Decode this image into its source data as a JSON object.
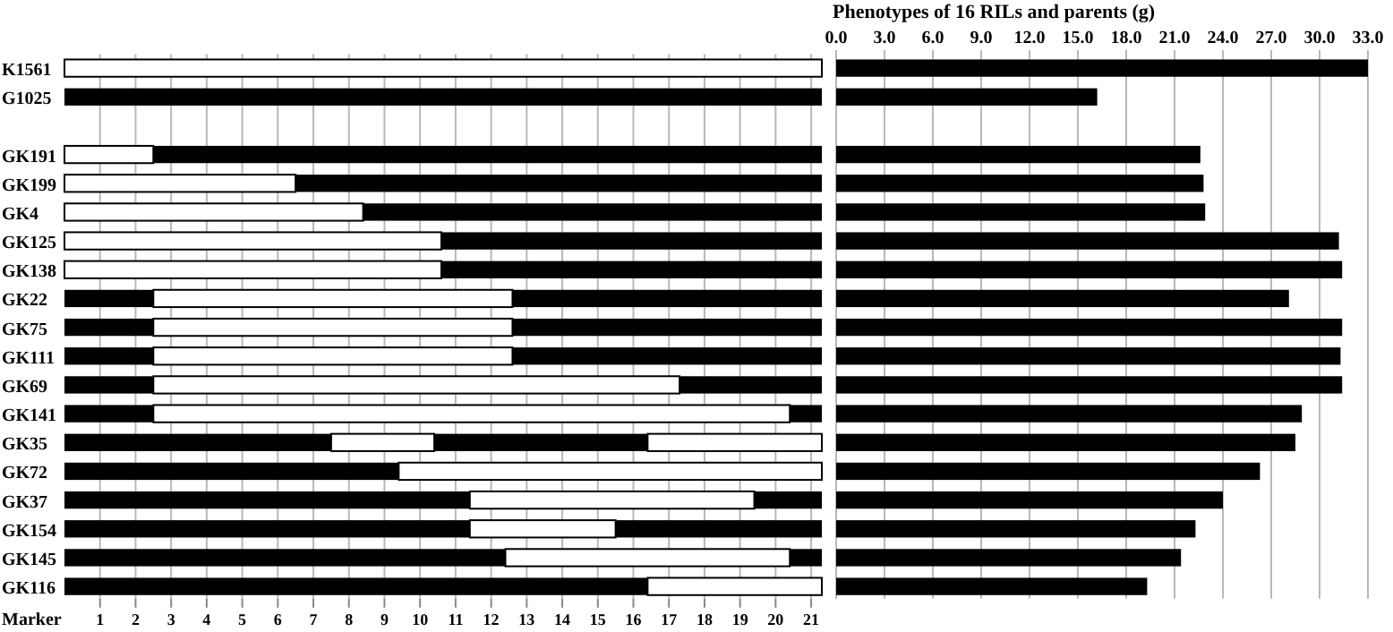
{
  "chart_data": [
    {
      "type": "bar",
      "orientation": "horizontal",
      "stacked": true,
      "xlabel": "Marker",
      "categories": [
        "K1561",
        "G1025",
        null,
        "GK191",
        "GK199",
        "GK4",
        "GK125",
        "GK138",
        "GK22",
        "GK75",
        "GK111",
        "GK69",
        "GK141",
        "GK35",
        "GK72",
        "GK37",
        "GK154",
        "GK145",
        "GK116"
      ],
      "series": [
        {
          "color": "#ffffff",
          "values": [
            21.3,
            null,
            null,
            2.5,
            6.5,
            8.4,
            10.6,
            10.6,
            null,
            null,
            null,
            null,
            null,
            null,
            null,
            null,
            null,
            null,
            null
          ]
        },
        {
          "color": "#000000",
          "values": [
            null,
            21.3,
            null,
            18.8,
            14.8,
            12.9,
            10.7,
            10.7,
            2.5,
            2.5,
            2.5,
            2.5,
            2.5,
            7.5,
            9.4,
            11.4,
            11.4,
            12.4,
            16.4
          ]
        },
        {
          "color": "#ffffff",
          "values": [
            null,
            null,
            null,
            null,
            null,
            null,
            null,
            null,
            10.1,
            10.1,
            10.1,
            14.8,
            17.9,
            2.9,
            11.9,
            8.0,
            4.1,
            8.0,
            4.9
          ]
        },
        {
          "color": "#000000",
          "values": [
            null,
            null,
            null,
            null,
            null,
            null,
            null,
            null,
            8.7,
            8.7,
            8.7,
            4.0,
            0.9,
            6.0,
            null,
            1.9,
            5.8,
            0.9,
            null
          ]
        },
        {
          "color": "#ffffff",
          "values": [
            null,
            null,
            null,
            null,
            null,
            null,
            null,
            null,
            null,
            null,
            null,
            null,
            null,
            4.9,
            null,
            null,
            null,
            null,
            null
          ]
        }
      ],
      "xlim": [
        0,
        21.3
      ],
      "xticks": [
        1,
        2,
        3,
        4,
        5,
        6,
        7,
        8,
        9,
        10,
        11,
        12,
        13,
        14,
        15,
        16,
        17,
        18,
        19,
        20,
        21
      ],
      "grid": "x"
    },
    {
      "type": "bar",
      "orientation": "horizontal",
      "title": "Phenotypes of 16 RILs and parents (g)",
      "categories": [
        null,
        null,
        null,
        null,
        null,
        null,
        null,
        null,
        null,
        null,
        null,
        null,
        null,
        null,
        null,
        null,
        null,
        null,
        null
      ],
      "series": [
        {
          "color": "#000000",
          "values": [
            33.0,
            16.2,
            null,
            22.6,
            22.8,
            22.9,
            31.2,
            31.4,
            28.1,
            31.4,
            31.3,
            31.4,
            28.9,
            28.5,
            26.3,
            24.0,
            22.3,
            21.4,
            19.3
          ]
        }
      ],
      "xlim": [
        0,
        33
      ],
      "xticks": [
        {
          "value": 0,
          "label": "0.0"
        },
        {
          "value": 3,
          "label": "3.0"
        },
        {
          "value": 6,
          "label": "6.0"
        },
        {
          "value": 9,
          "label": "9.0"
        },
        {
          "value": 12,
          "label": "12.0"
        },
        {
          "value": 15,
          "label": "15.0"
        },
        {
          "value": 18,
          "label": "18.0"
        },
        {
          "value": 21,
          "label": "21.0"
        },
        {
          "value": 24,
          "label": "24.0"
        },
        {
          "value": 27,
          "label": "27.0"
        },
        {
          "value": 30,
          "label": "30.0"
        },
        {
          "value": 33,
          "label": "33.0"
        }
      ],
      "grid": "x"
    }
  ]
}
